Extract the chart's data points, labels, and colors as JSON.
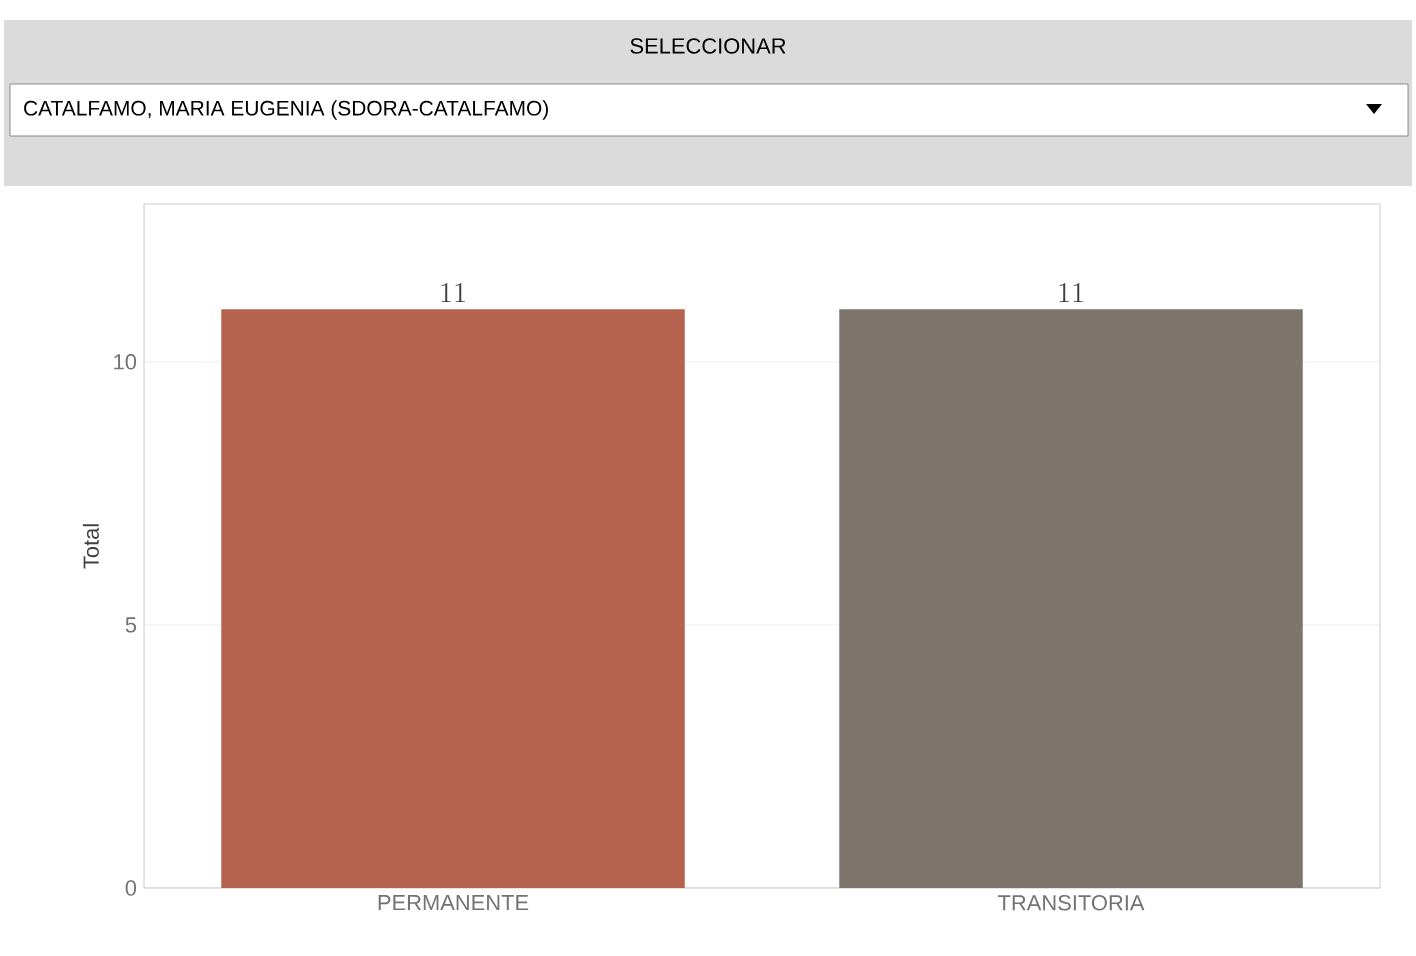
{
  "chart_data": {
    "type": "bar",
    "title": "SELECCIONAR",
    "subtitle": "CATALFAMO, MARIA EUGENIA (SDORA-CATALFAMO)",
    "ylabel": "Total",
    "categories": [
      "PERMANENTE",
      "TRANSITORIA"
    ],
    "values": [
      11,
      11
    ],
    "colors": [
      "#b5634f",
      "#7d756c"
    ],
    "ylim": [
      0,
      13
    ],
    "yticks": [
      0,
      5,
      10
    ],
    "grid": "y",
    "data_labels": true
  }
}
